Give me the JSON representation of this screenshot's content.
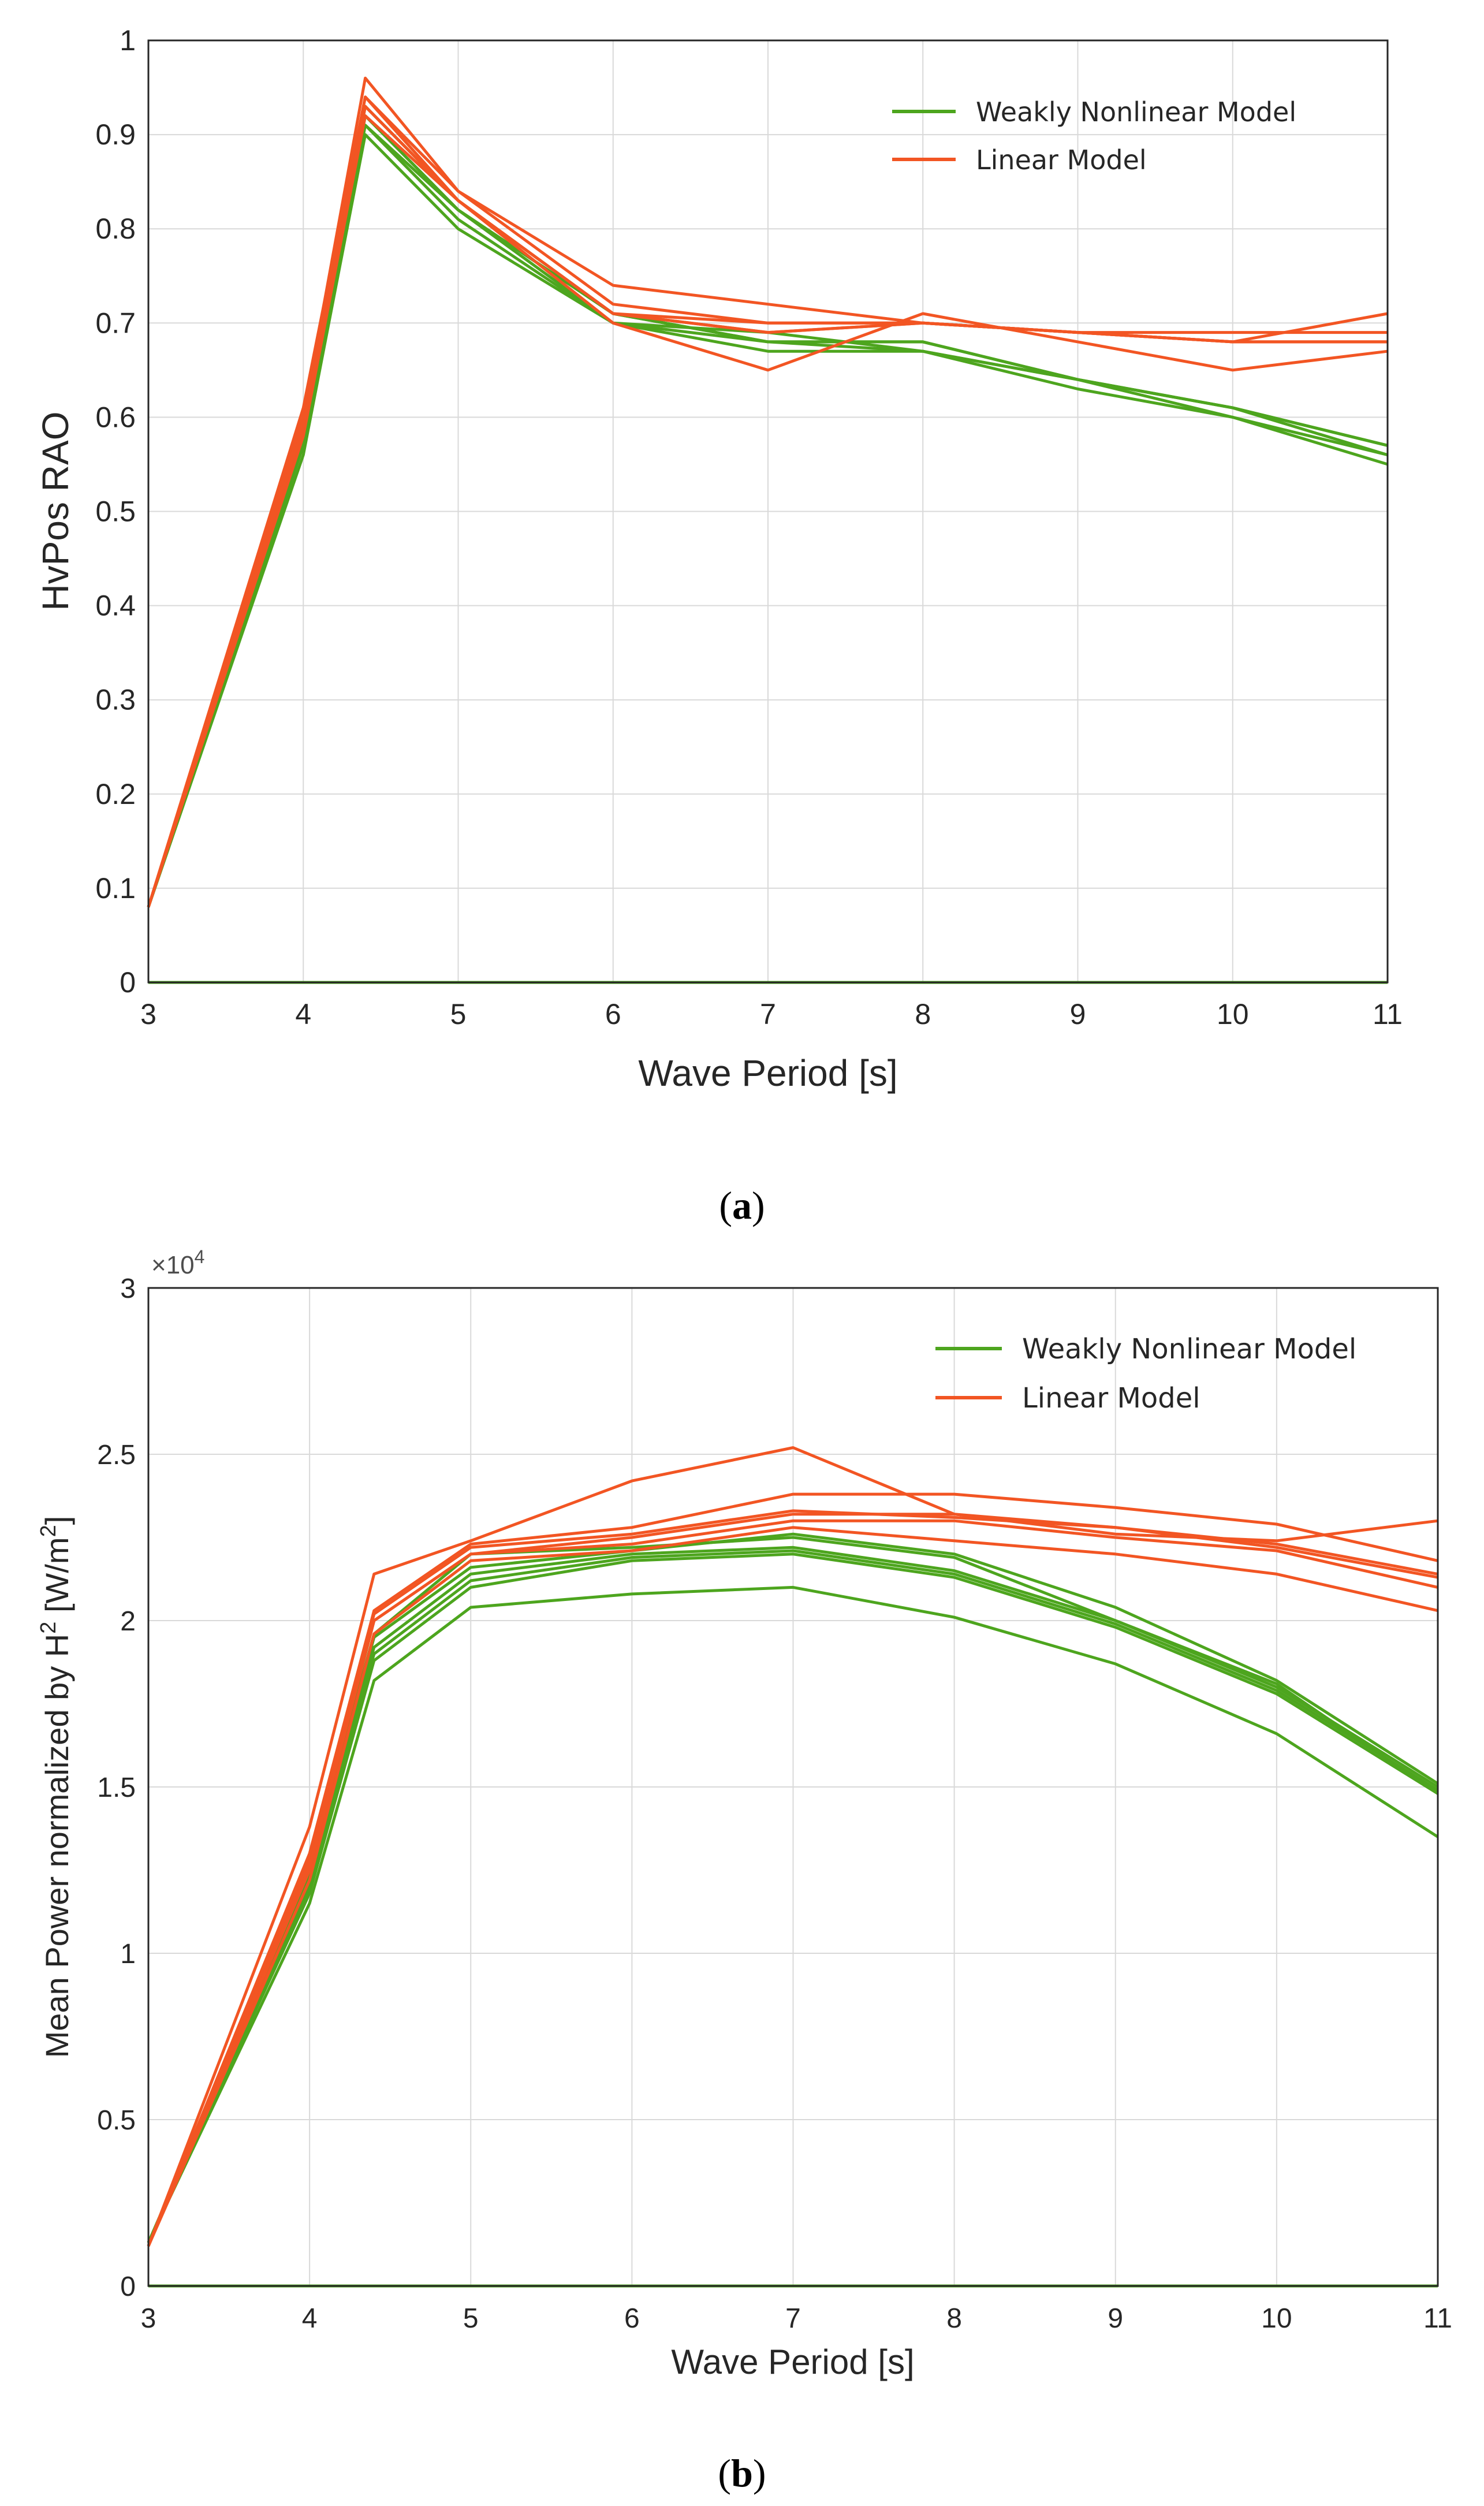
{
  "colors": {
    "nonlinear": "#4da51e",
    "linear": "#f25523",
    "grid": "#d9d9d9",
    "axis": "#262626"
  },
  "panels": [
    {
      "caption_open": "(",
      "caption_letter": "a",
      "caption_close": ")",
      "xlabel": "Wave Period [s]",
      "ylabel": "HvPos RAO",
      "ylabel_sup": "",
      "ylabel_tail": "",
      "exponent_text": "",
      "legend": {
        "nonlinear": "Weakly Nonlinear Model",
        "linear": "Linear Model"
      },
      "x_ticks": [
        "3",
        "4",
        "5",
        "6",
        "7",
        "8",
        "9",
        "10",
        "11"
      ],
      "y_ticks": [
        "0",
        "0.1",
        "0.2",
        "0.3",
        "0.4",
        "0.5",
        "0.6",
        "0.7",
        "0.8",
        "0.9",
        "1"
      ]
    },
    {
      "caption_open": "(",
      "caption_letter": "b",
      "caption_close": ")",
      "xlabel": "Wave Period [s]",
      "ylabel": "Mean Power normalized by H",
      "ylabel_sup": "2",
      "ylabel_tail": " [W/m",
      "ylabel_sup2": "2",
      "ylabel_end": "]",
      "exponent_text": "×10",
      "exponent_sup": "4",
      "legend": {
        "nonlinear": "Weakly Nonlinear Model",
        "linear": "Linear Model"
      },
      "x_ticks": [
        "3",
        "4",
        "5",
        "6",
        "7",
        "8",
        "9",
        "10",
        "11"
      ],
      "y_ticks": [
        "0",
        "0.5",
        "1",
        "1.5",
        "2",
        "2.5",
        "3"
      ]
    }
  ],
  "chart_data": [
    {
      "type": "line",
      "title": "",
      "xlabel": "Wave Period [s]",
      "ylabel": "HvPos RAO",
      "xlim": [
        3,
        11
      ],
      "ylim": [
        0,
        1
      ],
      "grid": true,
      "legend_position": "top-right",
      "x": [
        3,
        4,
        4.4,
        5,
        6,
        7,
        8,
        9,
        10,
        11
      ],
      "series": [
        {
          "name": "Weakly Nonlinear Model",
          "group": "nonlinear",
          "values": [
            0.08,
            0.56,
            0.9,
            0.8,
            0.7,
            0.67,
            0.67,
            0.63,
            0.6,
            0.55
          ]
        },
        {
          "group": "nonlinear",
          "values": [
            0.08,
            0.57,
            0.91,
            0.81,
            0.7,
            0.68,
            0.67,
            0.64,
            0.6,
            0.56
          ]
        },
        {
          "group": "nonlinear",
          "values": [
            0.08,
            0.57,
            0.92,
            0.82,
            0.71,
            0.68,
            0.68,
            0.64,
            0.61,
            0.56
          ]
        },
        {
          "group": "nonlinear",
          "values": [
            0.08,
            0.58,
            0.92,
            0.82,
            0.71,
            0.68,
            0.68,
            0.64,
            0.61,
            0.57
          ]
        },
        {
          "group": "nonlinear",
          "values": [
            0.08,
            0.58,
            0.93,
            0.83,
            0.71,
            0.68,
            0.68,
            0.64,
            0.61,
            0.57
          ]
        },
        {
          "group": "nonlinear",
          "values": [
            0.08,
            0.58,
            0.91,
            0.82,
            0.7,
            0.69,
            0.67,
            0.64,
            0.61,
            0.57
          ]
        },
        {
          "name": "Linear Model",
          "group": "linear",
          "values": [
            0.08,
            0.58,
            0.92,
            0.83,
            0.71,
            0.69,
            0.7,
            0.69,
            0.69,
            0.69
          ]
        },
        {
          "group": "linear",
          "values": [
            0.08,
            0.59,
            0.93,
            0.83,
            0.71,
            0.7,
            0.7,
            0.69,
            0.68,
            0.68
          ]
        },
        {
          "group": "linear",
          "values": [
            0.08,
            0.6,
            0.94,
            0.84,
            0.72,
            0.7,
            0.7,
            0.69,
            0.68,
            0.68
          ]
        },
        {
          "group": "linear",
          "values": [
            0.08,
            0.6,
            0.96,
            0.84,
            0.74,
            0.72,
            0.7,
            0.69,
            0.68,
            0.71
          ]
        },
        {
          "group": "linear",
          "values": [
            0.08,
            0.61,
            0.94,
            0.83,
            0.7,
            0.65,
            0.71,
            0.68,
            0.65,
            0.67
          ]
        },
        {
          "group": "linear",
          "values": [
            0.08,
            0.59,
            0.93,
            0.83,
            0.71,
            0.69,
            0.7,
            0.69,
            0.68,
            0.68
          ]
        }
      ]
    },
    {
      "type": "line",
      "title": "",
      "xlabel": "Wave Period [s]",
      "ylabel": "Mean Power normalized by H2 [W/m2]",
      "y_multiplier": "×10^4",
      "xlim": [
        3,
        11
      ],
      "ylim": [
        0,
        3
      ],
      "grid": true,
      "legend_position": "top-right",
      "x": [
        3,
        4,
        4.4,
        5,
        6,
        7,
        8,
        9,
        10,
        11
      ],
      "series": [
        {
          "name": "Weakly Nonlinear Model",
          "group": "nonlinear",
          "values": [
            0.13,
            1.15,
            1.82,
            2.04,
            2.08,
            2.1,
            2.01,
            1.87,
            1.66,
            1.35
          ]
        },
        {
          "group": "nonlinear",
          "values": [
            0.13,
            1.18,
            1.88,
            2.1,
            2.18,
            2.2,
            2.13,
            1.98,
            1.78,
            1.48
          ]
        },
        {
          "group": "nonlinear",
          "values": [
            0.13,
            1.2,
            1.9,
            2.12,
            2.19,
            2.21,
            2.14,
            1.99,
            1.79,
            1.49
          ]
        },
        {
          "group": "nonlinear",
          "values": [
            0.13,
            1.22,
            1.92,
            2.14,
            2.2,
            2.22,
            2.15,
            2.0,
            1.8,
            1.5
          ]
        },
        {
          "group": "nonlinear",
          "values": [
            0.13,
            1.24,
            1.95,
            2.16,
            2.21,
            2.26,
            2.2,
            2.04,
            1.82,
            1.51
          ]
        },
        {
          "group": "nonlinear",
          "values": [
            0.13,
            1.25,
            1.96,
            2.2,
            2.22,
            2.25,
            2.19,
            2.0,
            1.81,
            1.48
          ]
        },
        {
          "name": "Linear Model",
          "group": "linear",
          "values": [
            0.12,
            1.25,
            2.0,
            2.2,
            2.25,
            2.32,
            2.32,
            2.28,
            2.23,
            2.14
          ]
        },
        {
          "group": "linear",
          "values": [
            0.12,
            1.28,
            2.02,
            2.22,
            2.26,
            2.33,
            2.31,
            2.28,
            2.22,
            2.13
          ]
        },
        {
          "group": "linear",
          "values": [
            0.12,
            1.3,
            2.03,
            2.23,
            2.28,
            2.38,
            2.38,
            2.34,
            2.29,
            2.18
          ]
        },
        {
          "group": "linear",
          "values": [
            0.12,
            1.38,
            2.14,
            2.24,
            2.42,
            2.52,
            2.32,
            2.26,
            2.24,
            2.3
          ]
        },
        {
          "group": "linear",
          "values": [
            0.12,
            1.22,
            1.96,
            2.18,
            2.21,
            2.28,
            2.24,
            2.2,
            2.14,
            2.03
          ]
        },
        {
          "group": "linear",
          "values": [
            0.12,
            1.26,
            2.0,
            2.2,
            2.23,
            2.3,
            2.3,
            2.25,
            2.21,
            2.1
          ]
        }
      ]
    }
  ]
}
